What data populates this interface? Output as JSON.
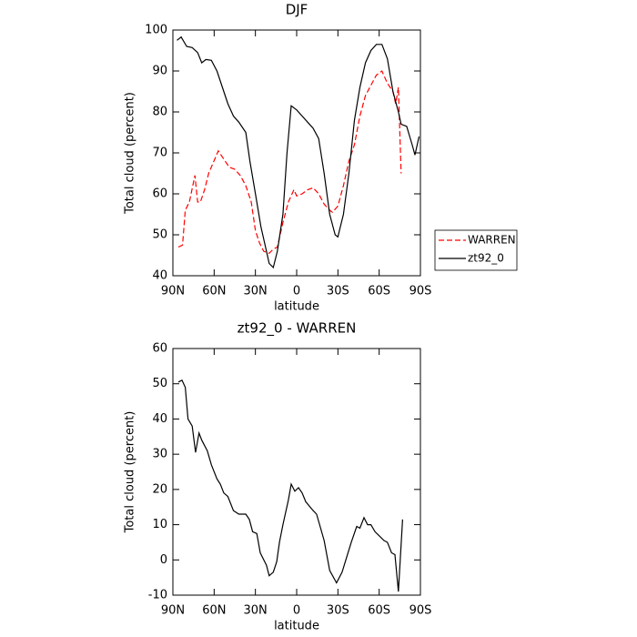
{
  "chart_data": [
    {
      "type": "line",
      "title": "DJF",
      "xlabel": "latitude",
      "ylabel": "Total cloud (percent)",
      "xlim": [
        90,
        -90
      ],
      "ylim": [
        40,
        100
      ],
      "xticks": [
        {
          "value": 90,
          "label": "90N"
        },
        {
          "value": 60,
          "label": "60N"
        },
        {
          "value": 30,
          "label": "30N"
        },
        0,
        {
          "value": -30,
          "label": "30S"
        },
        {
          "value": -60,
          "label": "60S"
        },
        {
          "value": -90,
          "label": "90S"
        }
      ],
      "yticks": [
        40,
        50,
        60,
        70,
        80,
        90,
        100
      ],
      "legend": "right",
      "series": [
        {
          "name": "WARREN",
          "color": "#ff0000",
          "dashed": true,
          "x": [
            86,
            83,
            81,
            78,
            74,
            72,
            70,
            67,
            64,
            57,
            53,
            49,
            45,
            41,
            37,
            33,
            30,
            27,
            24,
            20,
            17,
            14,
            10,
            6,
            2,
            0,
            -4,
            -8,
            -12,
            -16,
            -20,
            -24,
            -26,
            -30,
            -34,
            -38,
            -42,
            -46,
            -50,
            -54,
            -58,
            -62,
            -66,
            -70,
            -72,
            -74,
            -76
          ],
          "values": [
            47,
            47.5,
            56,
            58,
            64.5,
            58,
            58,
            61,
            65,
            70.5,
            68.5,
            66.5,
            66,
            64.5,
            62,
            58,
            51,
            48,
            46,
            45.5,
            46.5,
            47,
            53,
            58,
            61,
            59.5,
            60,
            61,
            61.5,
            60,
            57.5,
            56,
            55.5,
            57,
            62,
            68,
            72,
            79,
            84,
            86.5,
            89,
            90,
            87,
            85,
            82,
            86,
            65
          ]
        },
        {
          "name": "zt92_0",
          "color": "#000000",
          "dashed": false,
          "x": [
            87,
            84,
            80,
            76,
            72,
            69,
            66,
            62,
            58,
            54,
            50,
            46,
            42,
            37,
            34,
            30,
            26,
            22,
            20,
            17,
            14,
            10,
            7,
            4,
            0,
            -4,
            -8,
            -12,
            -16,
            -20,
            -24,
            -28,
            -30,
            -34,
            -38,
            -42,
            -46,
            -50,
            -54,
            -58,
            -62,
            -66,
            -70,
            -74,
            -76,
            -80,
            -84,
            -86,
            -89
          ],
          "values": [
            97.5,
            98.3,
            96,
            95.7,
            94.5,
            92,
            92.8,
            92.6,
            90,
            86,
            82,
            79,
            77.5,
            75,
            68,
            60,
            52,
            46,
            43,
            42,
            46,
            55,
            70,
            81.5,
            80.5,
            79,
            77.5,
            76,
            73.5,
            65,
            55,
            50,
            49.5,
            55,
            65,
            78,
            86,
            92,
            95,
            96.5,
            96.5,
            93,
            85,
            80,
            77,
            76.5,
            72,
            69.5,
            74
          ]
        }
      ]
    },
    {
      "type": "line",
      "title": "zt92_0 - WARREN",
      "xlabel": "latitude",
      "ylabel": "Total cloud (percent)",
      "xlim": [
        90,
        -90
      ],
      "ylim": [
        -10,
        60
      ],
      "xticks": [
        {
          "value": 90,
          "label": "90N"
        },
        {
          "value": 60,
          "label": "60N"
        },
        {
          "value": 30,
          "label": "30N"
        },
        0,
        {
          "value": -30,
          "label": "30S"
        },
        {
          "value": -60,
          "label": "60S"
        },
        {
          "value": -90,
          "label": "90S"
        }
      ],
      "yticks": [
        -10,
        0,
        10,
        20,
        30,
        40,
        50,
        60
      ],
      "series": [
        {
          "color": "#000000",
          "dashed": false,
          "x": [
            86,
            83.4,
            81,
            79,
            76,
            73.5,
            71,
            69,
            65,
            62,
            58,
            55.5,
            53,
            50,
            46,
            42,
            37,
            34.4,
            32,
            29,
            26.5,
            22,
            20,
            17,
            14.5,
            12.5,
            10,
            6,
            4,
            1.3,
            -1.3,
            -4,
            -6.6,
            -12,
            -14.5,
            -20,
            -24,
            -29,
            -33,
            -39.7,
            -43.7,
            -46,
            -49,
            -51.6,
            -54,
            -57,
            -59.6,
            -63.5,
            -66,
            -69,
            -71.5,
            -74,
            -77
          ],
          "values": [
            50.5,
            51,
            49,
            40,
            38,
            30.5,
            36,
            34,
            31,
            27,
            23,
            21.5,
            19,
            18,
            14,
            13,
            13,
            11.5,
            8,
            7.5,
            2,
            -1.5,
            -4.5,
            -3.5,
            -0.5,
            5,
            10,
            17,
            21.5,
            19.5,
            20.5,
            19,
            16.5,
            14,
            13,
            5.5,
            -3,
            -6.5,
            -3.5,
            5,
            9.5,
            9,
            12,
            10,
            10,
            8,
            7,
            5.5,
            5,
            2,
            1.5,
            -9,
            11.5
          ]
        }
      ]
    }
  ]
}
